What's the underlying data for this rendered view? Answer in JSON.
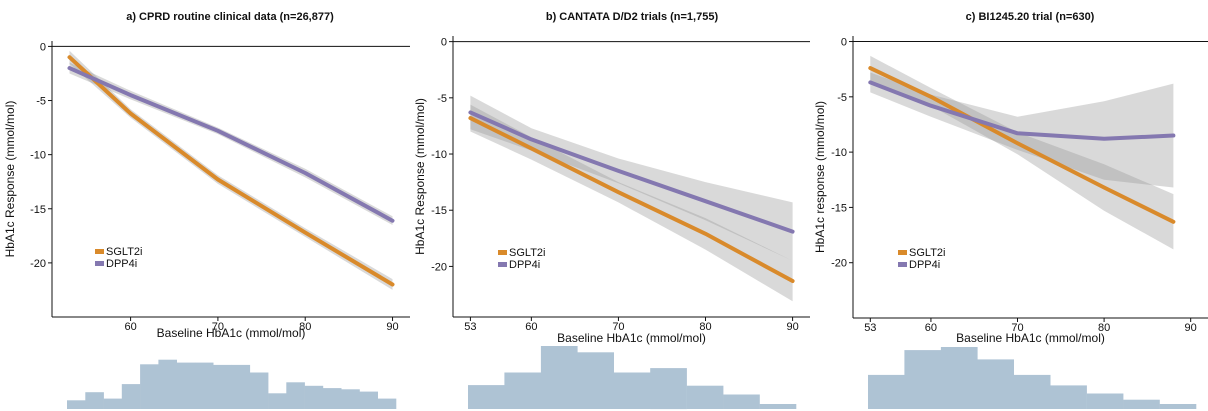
{
  "chart_data": [
    {
      "type": "line",
      "title": "a) CPRD routine clinical data (n=26,877)",
      "xlabel": "Baseline HbA1c (mmol/mol)",
      "ylabel": "HbA1c Response (mmol/mol)",
      "xlim": [
        51,
        92
      ],
      "ylim": [
        -25,
        0.5
      ],
      "x_ticks": [
        60,
        70,
        80,
        90
      ],
      "y_ticks": [
        0,
        -5,
        -10,
        -15,
        -20
      ],
      "x_tick_labels": [
        "60",
        "70",
        "80",
        "90"
      ],
      "y_tick_labels": [
        "0",
        "-5",
        "-10",
        "-15",
        "-20"
      ],
      "legend_position": "bottom-left",
      "series": [
        {
          "name": "SGLT2i",
          "color": "#d98a2b",
          "x": [
            53,
            60,
            70,
            80,
            90
          ],
          "y": [
            -1.0,
            -6.2,
            -12.3,
            -17.2,
            -22.0
          ],
          "ci_lower": [
            -1.6,
            -6.6,
            -12.7,
            -17.6,
            -22.5
          ],
          "ci_upper": [
            -0.4,
            -5.8,
            -11.9,
            -16.8,
            -21.5
          ]
        },
        {
          "name": "DPP4i",
          "color": "#8478b0",
          "x": [
            53,
            60,
            70,
            80,
            90
          ],
          "y": [
            -2.0,
            -4.5,
            -7.8,
            -11.7,
            -16.1
          ],
          "ci_lower": [
            -2.5,
            -4.9,
            -8.1,
            -12.1,
            -16.5
          ],
          "ci_upper": [
            -1.5,
            -4.1,
            -7.5,
            -11.3,
            -15.7
          ]
        }
      ],
      "histogram": {
        "color": "#aec3d4",
        "heights": [
          0.15,
          0.29,
          0.18,
          0.43,
          0.77,
          0.85,
          0.8,
          0.8,
          0.76,
          0.76,
          0.63,
          0.27,
          0.46,
          0.4,
          0.36,
          0.34,
          0.3,
          0.18
        ]
      }
    },
    {
      "type": "line",
      "title": "b) CANTATA D/D2 trials (n=1,755)",
      "xlabel": "Baseline HbA1c (mmol/mol)",
      "ylabel": "HbA1c Response (mmol/mol)",
      "xlim": [
        51,
        92
      ],
      "ylim": [
        -24.5,
        0.5
      ],
      "x_ticks": [
        53,
        60,
        70,
        80,
        90
      ],
      "y_ticks": [
        0,
        -5,
        -10,
        -15,
        -20
      ],
      "x_tick_labels": [
        "53",
        "60",
        "70",
        "80",
        "90"
      ],
      "y_tick_labels": [
        "0",
        "-5",
        "-10",
        "-15",
        "-20"
      ],
      "legend_position": "bottom-left",
      "series": [
        {
          "name": "SGLT2i",
          "color": "#d98a2b",
          "x": [
            53,
            60,
            70,
            80,
            90
          ],
          "y": [
            -6.8,
            -9.5,
            -13.4,
            -17.1,
            -21.3
          ],
          "ci_lower": [
            -8.0,
            -10.5,
            -14.3,
            -18.5,
            -23.1
          ],
          "ci_upper": [
            -5.6,
            -8.5,
            -12.5,
            -15.7,
            -19.5
          ]
        },
        {
          "name": "DPP4i",
          "color": "#8478b0",
          "x": [
            53,
            60,
            70,
            80,
            90
          ],
          "y": [
            -6.3,
            -8.7,
            -11.5,
            -14.2,
            -16.9
          ],
          "ci_lower": [
            -7.8,
            -9.7,
            -12.6,
            -15.9,
            -19.5
          ],
          "ci_upper": [
            -4.8,
            -7.7,
            -10.4,
            -12.5,
            -14.3
          ]
        }
      ],
      "histogram": {
        "color": "#aec3d4",
        "heights": [
          0.38,
          0.58,
          1.0,
          0.9,
          0.58,
          0.65,
          0.37,
          0.23,
          0.08
        ]
      }
    },
    {
      "type": "line",
      "title": "c) BI1245.20 trial (n=630)",
      "xlabel": "Baseline HbA1c (mmol/mol)",
      "ylabel": "HbA1c response (mmol/mol)",
      "xlim": [
        51,
        92
      ],
      "ylim": [
        -25,
        0.5
      ],
      "x_ticks": [
        53,
        60,
        70,
        80,
        90
      ],
      "y_ticks": [
        0,
        -5,
        -10,
        -15,
        -20
      ],
      "x_tick_labels": [
        "53",
        "60",
        "70",
        "80",
        "90"
      ],
      "y_tick_labels": [
        "0",
        "-5",
        "-10",
        "-15",
        "-20"
      ],
      "legend_position": "bottom-left",
      "series": [
        {
          "name": "SGLT2i",
          "color": "#d98a2b",
          "x": [
            53,
            60,
            70,
            80,
            88
          ],
          "y": [
            -2.4,
            -5.0,
            -9.2,
            -13.2,
            -16.3
          ],
          "ci_lower": [
            -3.5,
            -5.8,
            -10.2,
            -15.3,
            -18.8
          ],
          "ci_upper": [
            -1.3,
            -4.2,
            -8.2,
            -11.1,
            -13.8
          ]
        },
        {
          "name": "DPP4i",
          "color": "#8478b0",
          "x": [
            53,
            60,
            70,
            80,
            88
          ],
          "y": [
            -3.7,
            -5.8,
            -8.3,
            -8.8,
            -8.5
          ],
          "ci_lower": [
            -4.6,
            -6.8,
            -9.8,
            -12.5,
            -13.2
          ],
          "ci_upper": [
            -2.8,
            -4.8,
            -6.8,
            -5.4,
            -3.8
          ]
        }
      ],
      "histogram": {
        "color": "#aec3d4",
        "heights": [
          0.55,
          0.95,
          1.0,
          0.8,
          0.55,
          0.38,
          0.25,
          0.15,
          0.08
        ]
      }
    }
  ]
}
